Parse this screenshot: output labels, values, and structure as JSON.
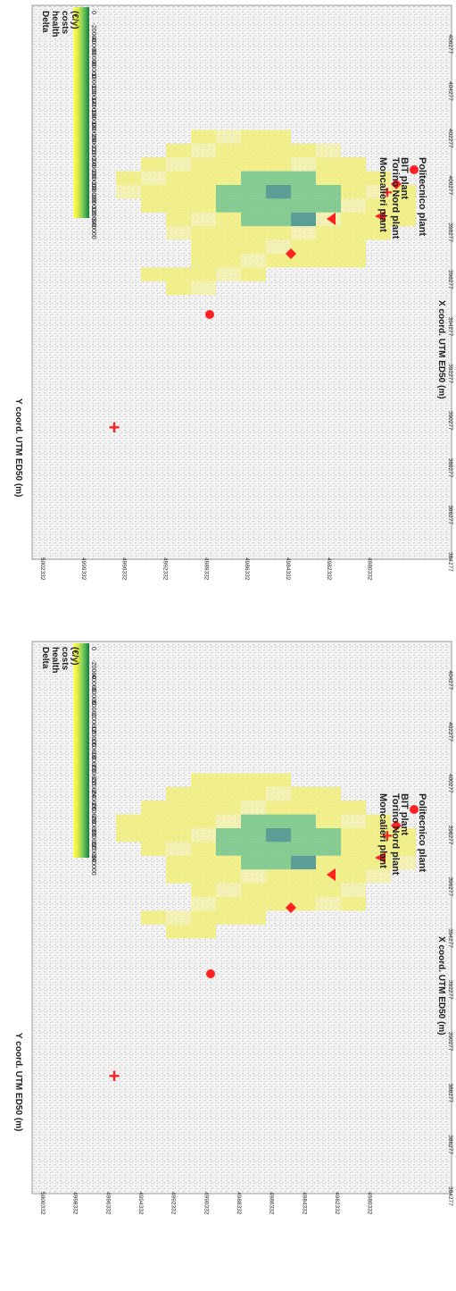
{
  "colorbar_title": [
    "Delta",
    "health",
    "costs",
    "(€/y)"
  ],
  "colorbar_gradient": [
    "#ffff66",
    "#e7ee3c",
    "#9ed65a",
    "#4cb455",
    "#1d7a38"
  ],
  "marker_color": "#ff2020",
  "panels": [
    {
      "id": "top",
      "y_label": "Y coord. UTM ED50 (m)",
      "x_label": "X coord. UTM ED50 (m)",
      "y_ticks": [
        "5002332",
        "4999332",
        "4996332",
        "4992332",
        "4989332",
        "4986332",
        "4984332",
        "4982332",
        "4980332"
      ],
      "x_ticks": [
        "384277",
        "386277",
        "388277",
        "390277",
        "392277",
        "394277",
        "396277",
        "398277",
        "400277",
        "402277",
        "404277",
        "406277"
      ],
      "colorbar_ticks": [
        "0",
        "-20000",
        "-40000",
        "-60000",
        "-80000",
        "-100000",
        "-120000",
        "-140000",
        "-160000",
        "-180000",
        "-200000",
        "-220000",
        "-240000",
        "-260000",
        "-280000",
        "-300000",
        "-320000",
        "-340000"
      ],
      "legend": [
        {
          "marker": "triangle",
          "label": "Moncalieri plant"
        },
        {
          "marker": "cross",
          "label": "Torino Nord plant"
        },
        {
          "marker": "diamond",
          "label": "BIT plant"
        },
        {
          "marker": "circle",
          "label": "Politecnico plant"
        }
      ]
    },
    {
      "id": "bottom",
      "y_label": "Y coord. UTM ED50 (m)",
      "x_label": "X coord. UTM ED50 (m)",
      "y_ticks": [
        "5000332",
        "4998332",
        "4996332",
        "4994332",
        "4992332",
        "4990332",
        "4988332",
        "4986332",
        "4984332",
        "4982332",
        "4980332"
      ],
      "x_ticks": [
        "384277",
        "386277",
        "388277",
        "390277",
        "392277",
        "394277",
        "396277",
        "398277",
        "400277",
        "402277",
        "404277"
      ],
      "colorbar_ticks": [
        "0",
        "-20000",
        "-40000",
        "-60000",
        "-80000",
        "-100000",
        "-120000",
        "-160000",
        "-180000",
        "-200000",
        "-220000",
        "-240000",
        "-260000",
        "-280000",
        "-300000",
        "-320000",
        "-340000"
      ],
      "legend": [
        {
          "marker": "triangle",
          "label": "Moncalieri plant"
        },
        {
          "marker": "cross",
          "label": "Torino Nord plant"
        },
        {
          "marker": "diamond",
          "label": "BIT plant"
        },
        {
          "marker": "circle",
          "label": "Politecnico plant"
        }
      ]
    }
  ]
}
